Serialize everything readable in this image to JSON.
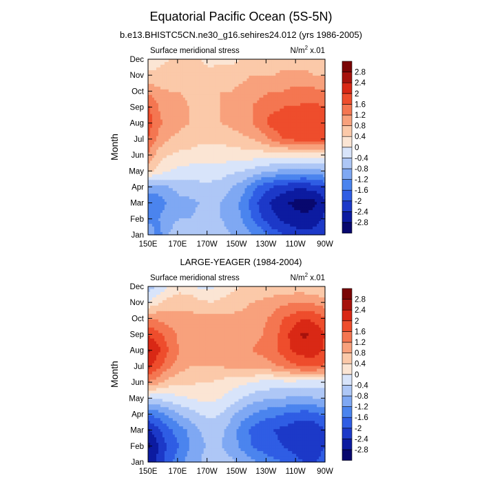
{
  "figure": {
    "title": "Equatorial Pacific Ocean (5S-5N)"
  },
  "colorbar": {
    "colors": [
      "#08086e",
      "#0c1ba0",
      "#1c39c8",
      "#2f5de4",
      "#4b84ee",
      "#7fa8f3",
      "#aec7f6",
      "#d8e4fa",
      "#fbe5d4",
      "#fbc9a9",
      "#f8a17c",
      "#f47651",
      "#ee4d2c",
      "#d92815",
      "#a6120c",
      "#7a0505"
    ],
    "labels": [
      "-2.8",
      "-2.4",
      "-2",
      "-1.6",
      "-1.2",
      "-0.8",
      "-0.4",
      "0",
      "0.4",
      "0.8",
      "1.2",
      "1.6",
      "2",
      "2.4",
      "2.8"
    ]
  },
  "chart_data": [
    {
      "type": "heatmap",
      "title": "b.e13.BHISTC5CN.ne30_g16.sehires24.012 (yrs 1986-2005)",
      "left_caption": "Surface meridional stress",
      "right_caption_prefix": "N/m",
      "right_caption_exp": "2",
      "right_caption_suffix": " x.01",
      "ylabel": "Month",
      "x_ticks": [
        "150E",
        "170E",
        "170W",
        "150W",
        "130W",
        "110W",
        "90W"
      ],
      "y_ticks": [
        "Jan",
        "Feb",
        "Mar",
        "Apr",
        "May",
        "Jun",
        "Jul",
        "Aug",
        "Sep",
        "Oct",
        "Nov",
        "Dec"
      ],
      "x_range": [
        "150E",
        "90W"
      ],
      "y_range": [
        "Jan",
        "Dec"
      ],
      "levels": [
        -2.8,
        -2.4,
        -2,
        -1.6,
        -1.2,
        -0.8,
        -0.4,
        0,
        0.4,
        0.8,
        1.2,
        1.6,
        2,
        2.4,
        2.8
      ],
      "values": [
        [
          -0.9,
          -1.4,
          -0.8,
          -0.6,
          -0.6,
          -0.6,
          -0.6,
          -0.7,
          -0.8,
          -1.0,
          -1.2,
          -1.4,
          -1.8,
          -2.0,
          -2.2,
          -2.3,
          -2.2,
          -2.0
        ],
        [
          -1.3,
          -1.2,
          -0.9,
          -0.8,
          -0.8,
          -0.7,
          -0.7,
          -0.8,
          -0.9,
          -1.2,
          -1.6,
          -2.0,
          -2.3,
          -2.5,
          -2.6,
          -2.7,
          -2.6,
          -2.3
        ],
        [
          -1.6,
          -1.5,
          -1.1,
          -0.9,
          -0.9,
          -0.8,
          -0.7,
          -0.8,
          -1.0,
          -1.3,
          -1.8,
          -2.2,
          -2.5,
          -2.7,
          -2.9,
          -3.0,
          -2.9,
          -2.5
        ],
        [
          -1.0,
          -0.9,
          -0.8,
          -0.7,
          -0.6,
          -0.5,
          -0.5,
          -0.6,
          -0.8,
          -1.0,
          -1.4,
          -1.8,
          -2.0,
          -2.2,
          -2.3,
          -2.3,
          -2.2,
          -2.0
        ],
        [
          0.6,
          0.2,
          0.0,
          -0.1,
          -0.2,
          -0.2,
          -0.2,
          -0.2,
          -0.3,
          -0.4,
          -0.5,
          -0.7,
          -0.8,
          -0.9,
          -0.9,
          -1.0,
          -0.9,
          -0.8
        ],
        [
          1.2,
          0.6,
          0.4,
          0.3,
          0.3,
          0.2,
          0.2,
          0.2,
          0.2,
          0.2,
          0.2,
          0.2,
          0.2,
          0.2,
          0.2,
          0.2,
          0.2,
          0.2
        ],
        [
          1.6,
          1.1,
          0.8,
          0.7,
          0.6,
          0.5,
          0.5,
          0.5,
          0.6,
          0.7,
          0.8,
          1.0,
          1.3,
          1.6,
          1.7,
          1.8,
          1.8,
          1.7
        ],
        [
          1.8,
          1.3,
          1.0,
          0.9,
          0.8,
          0.7,
          0.7,
          0.8,
          0.9,
          1.0,
          1.2,
          1.5,
          1.8,
          1.8,
          1.9,
          1.9,
          1.9,
          1.8
        ],
        [
          1.7,
          1.2,
          1.0,
          0.9,
          0.8,
          0.8,
          0.8,
          0.8,
          0.9,
          1.0,
          1.2,
          1.4,
          1.5,
          1.6,
          1.6,
          1.7,
          1.7,
          1.6
        ],
        [
          1.1,
          0.9,
          0.8,
          0.8,
          0.7,
          0.7,
          0.7,
          0.8,
          0.8,
          0.9,
          1.0,
          1.1,
          1.2,
          1.2,
          1.3,
          1.3,
          1.3,
          1.2
        ],
        [
          0.5,
          0.5,
          0.5,
          0.5,
          0.5,
          0.5,
          0.5,
          0.6,
          0.6,
          0.7,
          0.8,
          0.8,
          0.8,
          0.9,
          0.9,
          0.9,
          0.8,
          0.8
        ],
        [
          0.1,
          0.3,
          0.4,
          0.4,
          0.4,
          0.4,
          0.3,
          0.3,
          0.3,
          0.4,
          0.4,
          0.5,
          0.5,
          0.6,
          0.6,
          0.6,
          0.5,
          0.5
        ]
      ]
    },
    {
      "type": "heatmap",
      "title": "LARGE-YEAGER (1984-2004)",
      "left_caption": "Surface meridional stress",
      "right_caption_prefix": "N/m",
      "right_caption_exp": "2",
      "right_caption_suffix": " x.01",
      "ylabel": "Month",
      "x_ticks": [
        "150E",
        "170E",
        "170W",
        "150W",
        "130W",
        "110W",
        "90W"
      ],
      "y_ticks": [
        "Jan",
        "Feb",
        "Mar",
        "Apr",
        "May",
        "Jun",
        "Jul",
        "Aug",
        "Sep",
        "Oct",
        "Nov",
        "Dec"
      ],
      "x_range": [
        "150E",
        "90W"
      ],
      "y_range": [
        "Jan",
        "Dec"
      ],
      "levels": [
        -2.8,
        -2.4,
        -2,
        -1.6,
        -1.2,
        -0.8,
        -0.4,
        0,
        0.4,
        0.8,
        1.2,
        1.6,
        2,
        2.4,
        2.8
      ],
      "values": [
        [
          -2.6,
          -2.3,
          -1.7,
          -1.4,
          -1.0,
          -0.8,
          -0.6,
          -0.6,
          -0.7,
          -0.9,
          -1.1,
          -1.3,
          -1.5,
          -1.6,
          -1.8,
          -2.0,
          -2.0,
          -1.8
        ],
        [
          -2.9,
          -2.4,
          -1.9,
          -1.6,
          -1.2,
          -0.9,
          -0.7,
          -0.8,
          -1.0,
          -1.3,
          -1.6,
          -1.8,
          -1.9,
          -2.0,
          -2.2,
          -2.4,
          -2.3,
          -2.0
        ],
        [
          -2.5,
          -2.1,
          -1.7,
          -1.4,
          -1.1,
          -0.8,
          -0.6,
          -0.7,
          -1.0,
          -1.4,
          -1.7,
          -1.9,
          -2.0,
          -2.1,
          -2.3,
          -2.4,
          -2.3,
          -2.0
        ],
        [
          -1.6,
          -1.4,
          -1.1,
          -0.8,
          -0.6,
          -0.4,
          -0.3,
          -0.4,
          -0.7,
          -1.0,
          -1.2,
          -1.4,
          -1.5,
          -1.6,
          -1.7,
          -1.8,
          -1.7,
          -1.5
        ],
        [
          -0.3,
          -0.3,
          -0.2,
          -0.1,
          0.0,
          0.1,
          0.1,
          0.0,
          -0.2,
          -0.4,
          -0.6,
          -0.7,
          -0.8,
          -0.8,
          -0.9,
          -0.9,
          -0.8,
          -0.7
        ],
        [
          1.2,
          0.9,
          0.6,
          0.5,
          0.5,
          0.4,
          0.4,
          0.3,
          0.2,
          0.1,
          0.0,
          -0.1,
          -0.1,
          -0.1,
          -0.1,
          -0.2,
          -0.2,
          -0.2
        ],
        [
          2.2,
          1.7,
          1.3,
          1.0,
          0.8,
          0.8,
          0.8,
          0.8,
          0.9,
          0.9,
          1.0,
          1.0,
          1.1,
          1.3,
          1.5,
          1.7,
          1.7,
          1.5
        ],
        [
          2.5,
          2.1,
          1.6,
          1.2,
          1.0,
          0.9,
          0.9,
          1.0,
          1.1,
          1.1,
          1.2,
          1.3,
          1.5,
          1.8,
          2.1,
          2.2,
          2.2,
          1.9
        ],
        [
          2.0,
          1.7,
          1.4,
          1.1,
          1.0,
          0.9,
          0.9,
          0.9,
          1.0,
          1.0,
          1.1,
          1.2,
          1.4,
          1.8,
          2.2,
          2.5,
          2.3,
          2.0
        ],
        [
          1.2,
          1.1,
          1.0,
          0.9,
          0.9,
          0.9,
          0.9,
          0.9,
          0.9,
          0.9,
          1.0,
          1.1,
          1.3,
          1.6,
          1.8,
          2.0,
          1.9,
          1.6
        ],
        [
          0.0,
          0.3,
          0.6,
          0.7,
          0.7,
          0.5,
          0.4,
          0.5,
          0.6,
          0.7,
          0.8,
          0.9,
          1.0,
          1.1,
          1.2,
          1.2,
          1.1,
          1.0
        ],
        [
          -0.6,
          -0.3,
          0.0,
          0.2,
          0.1,
          -0.1,
          -0.1,
          0.1,
          0.3,
          0.4,
          0.4,
          0.4,
          0.5,
          0.5,
          0.5,
          0.5,
          0.4,
          0.4
        ]
      ]
    }
  ]
}
